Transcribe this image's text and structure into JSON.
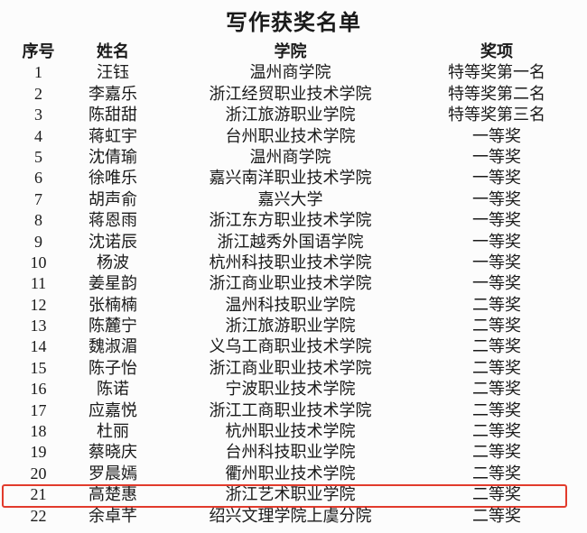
{
  "page": {
    "title": "写作获奖名单",
    "background_color": "#fcfcfc",
    "text_color": "#1a1a1a",
    "highlight_box_color": "#e23b2c"
  },
  "table": {
    "columns": [
      "序号",
      "姓名",
      "学院",
      "奖项"
    ],
    "rows": [
      {
        "no": "1",
        "name": "汪钰",
        "college": "温州商学院",
        "award": "特等奖第一名",
        "highlighted": false
      },
      {
        "no": "2",
        "name": "李嘉乐",
        "college": "浙江经贸职业技术学院",
        "award": "特等奖第二名",
        "highlighted": false
      },
      {
        "no": "3",
        "name": "陈甜甜",
        "college": "浙江旅游职业学院",
        "award": "特等奖第三名",
        "highlighted": false
      },
      {
        "no": "4",
        "name": "蒋虹宇",
        "college": "台州职业技术学院",
        "award": "一等奖",
        "highlighted": false
      },
      {
        "no": "5",
        "name": "沈倩瑜",
        "college": "温州商学院",
        "award": "一等奖",
        "highlighted": false
      },
      {
        "no": "6",
        "name": "徐唯乐",
        "college": "嘉兴南洋职业技术学院",
        "award": "一等奖",
        "highlighted": false
      },
      {
        "no": "7",
        "name": "胡声俞",
        "college": "嘉兴大学",
        "award": "一等奖",
        "highlighted": false
      },
      {
        "no": "8",
        "name": "蒋恩雨",
        "college": "浙江东方职业技术学院",
        "award": "一等奖",
        "highlighted": false
      },
      {
        "no": "9",
        "name": "沈诺辰",
        "college": "浙江越秀外国语学院",
        "award": "一等奖",
        "highlighted": false
      },
      {
        "no": "10",
        "name": "杨波",
        "college": "杭州科技职业技术学院",
        "award": "一等奖",
        "highlighted": false
      },
      {
        "no": "11",
        "name": "姜星韵",
        "college": "浙江商业职业技术学院",
        "award": "一等奖",
        "highlighted": false
      },
      {
        "no": "12",
        "name": "张楠楠",
        "college": "温州科技职业学院",
        "award": "二等奖",
        "highlighted": false
      },
      {
        "no": "13",
        "name": "陈麓宁",
        "college": "浙江旅游职业学院",
        "award": "二等奖",
        "highlighted": false
      },
      {
        "no": "14",
        "name": "魏淑湄",
        "college": "义乌工商职业技术学院",
        "award": "二等奖",
        "highlighted": false
      },
      {
        "no": "15",
        "name": "陈子怡",
        "college": "浙江商业职业技术学院",
        "award": "二等奖",
        "highlighted": false
      },
      {
        "no": "16",
        "name": "陈诺",
        "college": "宁波职业技术学院",
        "award": "二等奖",
        "highlighted": false
      },
      {
        "no": "17",
        "name": "应嘉悦",
        "college": "浙江工商职业技术学院",
        "award": "二等奖",
        "highlighted": false
      },
      {
        "no": "18",
        "name": "杜丽",
        "college": "杭州职业技术学院",
        "award": "二等奖",
        "highlighted": false
      },
      {
        "no": "19",
        "name": "蔡晓庆",
        "college": "台州科技职业学院",
        "award": "二等奖",
        "highlighted": false
      },
      {
        "no": "20",
        "name": "罗晨嫣",
        "college": "衢州职业技术学院",
        "award": "二等奖",
        "highlighted": false
      },
      {
        "no": "21",
        "name": "高楚惠",
        "college": "浙江艺术职业学院",
        "award": "二等奖",
        "highlighted": true
      },
      {
        "no": "22",
        "name": "余卓芊",
        "college": "绍兴文理学院上虞分院",
        "award": "二等奖",
        "highlighted": false
      }
    ]
  }
}
